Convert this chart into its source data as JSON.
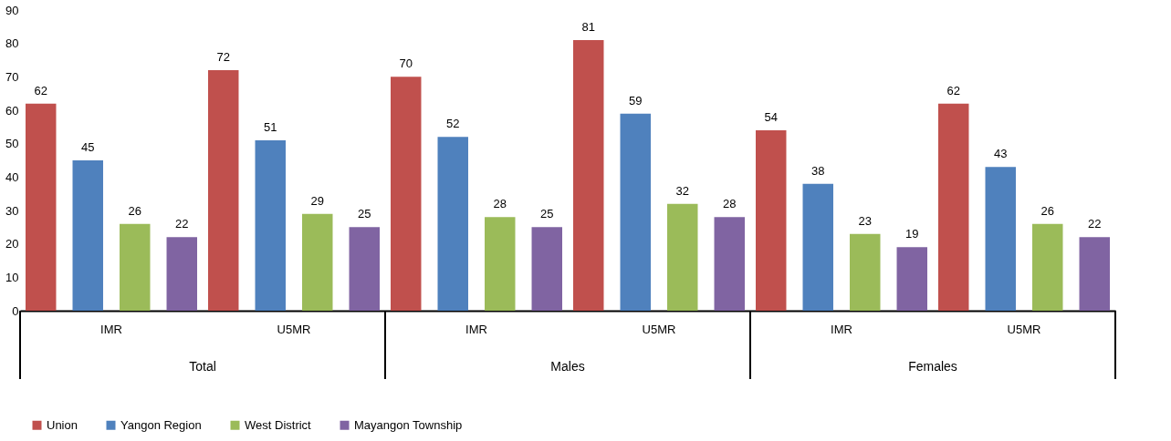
{
  "chart_data": {
    "type": "bar",
    "categories": [
      "IMR",
      "U5MR",
      "IMR",
      "U5MR",
      "IMR",
      "U5MR"
    ],
    "annotations": [
      "Total",
      "Males",
      "Females"
    ],
    "series": [
      {
        "name": "Union",
        "color": "#c0504d",
        "values": [
          62,
          72,
          70,
          81,
          54,
          62
        ]
      },
      {
        "name": "Yangon Region",
        "color": "#4f81bd",
        "values": [
          45,
          51,
          52,
          59,
          38,
          43
        ]
      },
      {
        "name": "West District",
        "color": "#9bbb59",
        "values": [
          26,
          29,
          28,
          32,
          23,
          26
        ]
      },
      {
        "name": "Mayangon Township",
        "color": "#8064a2",
        "values": [
          22,
          25,
          25,
          28,
          19,
          22
        ]
      }
    ],
    "ylim": [
      0,
      90
    ],
    "yticks": [
      0,
      10,
      20,
      30,
      40,
      50,
      60,
      70,
      80,
      90
    ],
    "grid": false,
    "legend": "bottom",
    "data_labels": true
  }
}
